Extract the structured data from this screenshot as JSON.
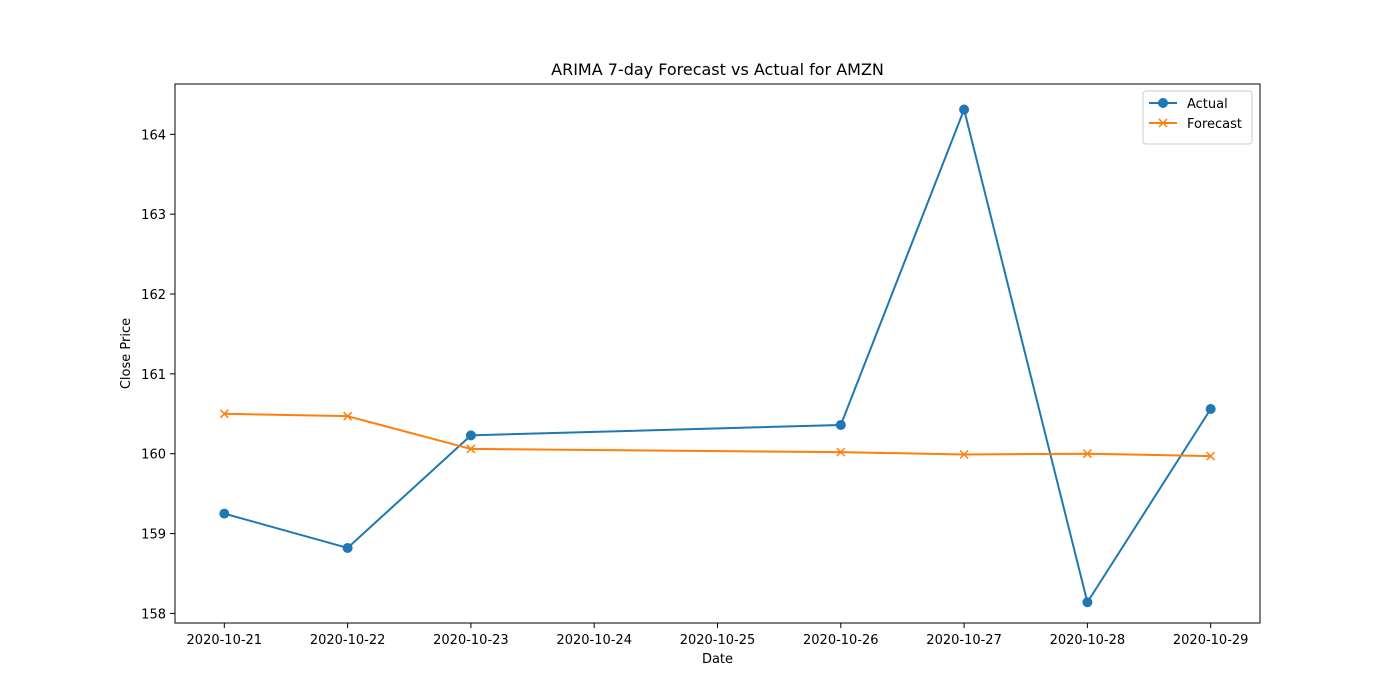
{
  "chart_data": {
    "type": "line",
    "title": "ARIMA 7-day Forecast vs Actual for AMZN",
    "xlabel": "Date",
    "ylabel": "Close Price",
    "x_ticks": [
      "2020-10-21",
      "2020-10-22",
      "2020-10-23",
      "2020-10-24",
      "2020-10-25",
      "2020-10-26",
      "2020-10-27",
      "2020-10-28",
      "2020-10-29"
    ],
    "y_ticks": [
      "158",
      "159",
      "160",
      "161",
      "162",
      "163",
      "164"
    ],
    "xlim": [
      "2020-10-20T14:24",
      "2020-10-29T09:36"
    ],
    "ylim": [
      157.88,
      164.63
    ],
    "grid": false,
    "legend_position": "top-right",
    "series": [
      {
        "name": "Actual",
        "color": "#1f77b4",
        "marker": "circle",
        "x": [
          "2020-10-21",
          "2020-10-22",
          "2020-10-23",
          "2020-10-26",
          "2020-10-27",
          "2020-10-28",
          "2020-10-29"
        ],
        "y": [
          159.25,
          158.82,
          160.23,
          160.36,
          164.31,
          158.14,
          160.56
        ]
      },
      {
        "name": "Forecast",
        "color": "#ff7f0e",
        "marker": "x",
        "x": [
          "2020-10-21",
          "2020-10-22",
          "2020-10-23",
          "2020-10-26",
          "2020-10-27",
          "2020-10-28",
          "2020-10-29"
        ],
        "y": [
          160.5,
          160.47,
          160.06,
          160.02,
          159.99,
          160.0,
          159.97
        ]
      }
    ]
  }
}
